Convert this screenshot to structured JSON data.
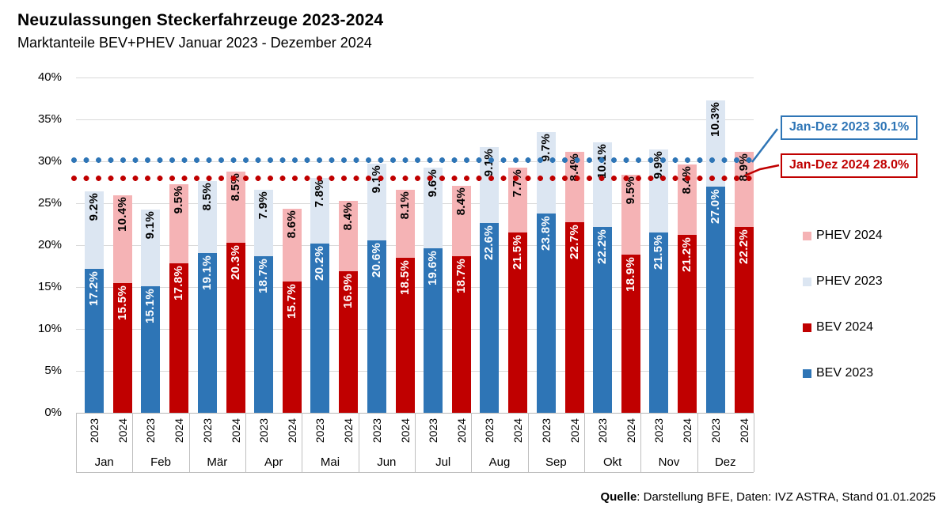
{
  "header": {
    "title": "Neuzulassungen Steckerfahrzeuge 2023-2024",
    "subtitle": "Marktanteile BEV+PHEV Januar 2023 - Dezember 2024"
  },
  "chart_data": {
    "type": "bar",
    "stacked": true,
    "grid": true,
    "legend_position": "right",
    "ylim": [
      0,
      40
    ],
    "ytick_labels": [
      "0%",
      "5%",
      "10%",
      "15%",
      "20%",
      "25%",
      "30%",
      "35%",
      "40%"
    ],
    "ytick_values": [
      0,
      5,
      10,
      15,
      20,
      25,
      30,
      35,
      40
    ],
    "categories": [
      "Jan",
      "Feb",
      "Mär",
      "Apr",
      "Mai",
      "Jun",
      "Jul",
      "Aug",
      "Sep",
      "Okt",
      "Nov",
      "Dez"
    ],
    "bar_year_labels": [
      "2023",
      "2024"
    ],
    "series": [
      {
        "name": "BEV 2023",
        "color": "#2e75b6",
        "values": [
          17.2,
          15.1,
          19.1,
          18.7,
          20.2,
          20.6,
          19.6,
          22.6,
          23.8,
          22.2,
          21.5,
          27.0
        ],
        "labels": [
          "17.2%",
          "15.1%",
          "19.1%",
          "18.7%",
          "20.2%",
          "20.6%",
          "19.6%",
          "22.6%",
          "23.8%",
          "22.2%",
          "21.5%",
          "27.0%"
        ]
      },
      {
        "name": "PHEV 2023",
        "color": "#dce6f2",
        "values": [
          9.2,
          9.1,
          8.5,
          7.9,
          7.8,
          9.1,
          9.6,
          9.1,
          9.7,
          10.1,
          9.9,
          10.3
        ],
        "labels": [
          "9.2%",
          "9.1%",
          "8.5%",
          "7.9%",
          "7.8%",
          "9.1%",
          "9.6%",
          "9.1%",
          "9.7%",
          "10.1%",
          "9.9%",
          "10.3%"
        ]
      },
      {
        "name": "BEV 2024",
        "color": "#c00000",
        "values": [
          15.5,
          17.8,
          20.3,
          15.7,
          16.9,
          18.5,
          18.7,
          21.5,
          22.7,
          18.9,
          21.2,
          22.2
        ],
        "labels": [
          "15.5%",
          "17.8%",
          "20.3%",
          "15.7%",
          "16.9%",
          "18.5%",
          "18.7%",
          "21.5%",
          "22.7%",
          "18.9%",
          "21.2%",
          "22.2%"
        ]
      },
      {
        "name": "PHEV 2024",
        "color": "#f5b3b5",
        "values": [
          10.4,
          9.5,
          8.5,
          8.6,
          8.4,
          8.1,
          8.4,
          7.7,
          8.4,
          9.5,
          8.4,
          8.9
        ],
        "labels": [
          "10.4%",
          "9.5%",
          "8.5%",
          "8.6%",
          "8.4%",
          "8.1%",
          "8.4%",
          "7.7%",
          "8.4%",
          "9.5%",
          "8.4%",
          "8.9%"
        ]
      }
    ],
    "reference_lines": [
      {
        "label": "Jan-Dez 2023 30.1%",
        "value": 30.1,
        "color": "#2e75b6"
      },
      {
        "label": "Jan-Dez 2024 28.0%",
        "value": 28.0,
        "color": "#c00000"
      }
    ],
    "legend": [
      {
        "label": "PHEV 2024",
        "color": "#f5b3b5"
      },
      {
        "label": "PHEV 2023",
        "color": "#dce6f2"
      },
      {
        "label": "BEV 2024",
        "color": "#c00000"
      },
      {
        "label": "BEV 2023",
        "color": "#2e75b6"
      }
    ]
  },
  "source": {
    "label_bold": "Quelle",
    "label_rest": ": Darstellung BFE, Daten: IVZ ASTRA, Stand 01.01.2025"
  }
}
